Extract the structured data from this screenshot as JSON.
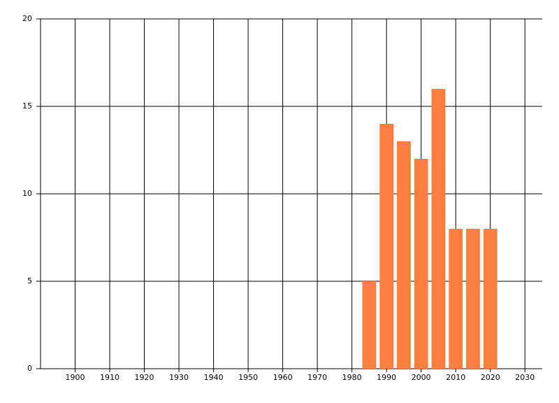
{
  "chart_data": {
    "type": "bar",
    "x": [
      1985,
      1990,
      1995,
      2000,
      2005,
      2010,
      2015,
      2020
    ],
    "values": [
      5,
      14,
      13,
      12,
      16,
      8,
      8,
      8
    ],
    "color": "#ff7f41",
    "xlim": [
      1890,
      2035
    ],
    "xticks": [
      1900,
      1910,
      1920,
      1930,
      1940,
      1950,
      1960,
      1970,
      1980,
      1990,
      2000,
      2010,
      2020,
      2030
    ],
    "ylim": [
      0,
      20
    ],
    "yticks": [
      0,
      5,
      10,
      15,
      20
    ],
    "grid": true
  }
}
